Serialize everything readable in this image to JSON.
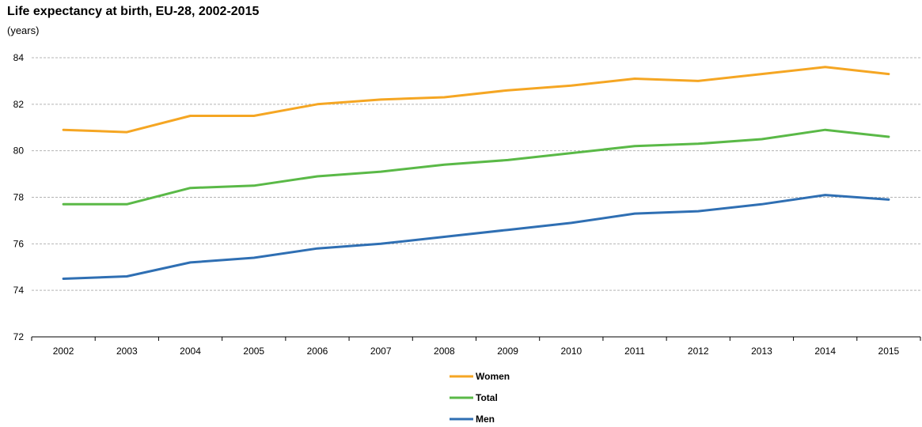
{
  "chart_data": {
    "type": "line",
    "title": "Life expectancy at birth, EU-28, 2002-2015",
    "subtitle": "(years)",
    "xlabel": "",
    "ylabel": "",
    "ylim": [
      72,
      84
    ],
    "yticks": [
      72,
      74,
      76,
      78,
      80,
      82,
      84
    ],
    "grid": true,
    "legend_position": "bottom-center",
    "categories": [
      "2002",
      "2003",
      "2004",
      "2005",
      "2006",
      "2007",
      "2008",
      "2009",
      "2010",
      "2011",
      "2012",
      "2013",
      "2014",
      "2015"
    ],
    "series": [
      {
        "name": "Women",
        "color": "#f5a623",
        "values": [
          80.9,
          80.8,
          81.5,
          81.5,
          82.0,
          82.2,
          82.3,
          82.6,
          82.8,
          83.1,
          83.0,
          83.3,
          83.6,
          83.3
        ]
      },
      {
        "name": "Total",
        "color": "#5ab947",
        "values": [
          77.7,
          77.7,
          78.4,
          78.5,
          78.9,
          79.1,
          79.4,
          79.6,
          79.9,
          80.2,
          80.3,
          80.5,
          80.9,
          80.6
        ]
      },
      {
        "name": "Men",
        "color": "#2f6fb3",
        "values": [
          74.5,
          74.6,
          75.2,
          75.4,
          75.8,
          76.0,
          76.3,
          76.6,
          76.9,
          77.3,
          77.4,
          77.7,
          78.1,
          77.9
        ]
      }
    ]
  }
}
